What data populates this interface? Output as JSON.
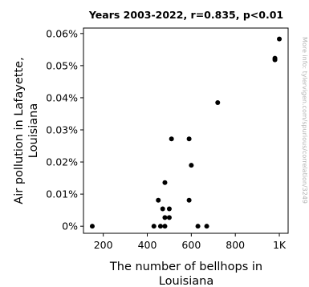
{
  "chart_data": {
    "type": "scatter",
    "title": "Years 2003-2022, r=0.835, p<0.01",
    "xlabel": [
      "The number of bellhops in",
      "Louisiana"
    ],
    "ylabel": [
      "Air pollution in Lafayette,",
      "Louisiana"
    ],
    "side_note": "More info: tylervigen.com/spurious/correlation/3249",
    "x_ticks": [
      {
        "value": 200,
        "label": "200"
      },
      {
        "value": 400,
        "label": "400"
      },
      {
        "value": 600,
        "label": "600"
      },
      {
        "value": 800,
        "label": "800"
      },
      {
        "value": 1000,
        "label": "1K"
      }
    ],
    "y_ticks": [
      {
        "value": 0.0,
        "label": "0%"
      },
      {
        "value": 0.01,
        "label": "0.01%"
      },
      {
        "value": 0.02,
        "label": "0.02%"
      },
      {
        "value": 0.03,
        "label": "0.03%"
      },
      {
        "value": 0.04,
        "label": "0.04%"
      },
      {
        "value": 0.05,
        "label": "0.05%"
      },
      {
        "value": 0.06,
        "label": "0.06%"
      }
    ],
    "xlim": [
      110,
      1040
    ],
    "ylim": [
      -0.0022,
      0.0617
    ],
    "grid": false,
    "point_color": "#000000",
    "points": [
      {
        "x": 150,
        "y": 0.0
      },
      {
        "x": 430,
        "y": 0.0
      },
      {
        "x": 460,
        "y": 0.0
      },
      {
        "x": 480,
        "y": 0.0
      },
      {
        "x": 630,
        "y": 0.0
      },
      {
        "x": 670,
        "y": 0.0
      },
      {
        "x": 480,
        "y": 0.0027
      },
      {
        "x": 500,
        "y": 0.0027
      },
      {
        "x": 470,
        "y": 0.0054
      },
      {
        "x": 500,
        "y": 0.0054
      },
      {
        "x": 450,
        "y": 0.0081
      },
      {
        "x": 590,
        "y": 0.0081
      },
      {
        "x": 480,
        "y": 0.0136
      },
      {
        "x": 600,
        "y": 0.019
      },
      {
        "x": 510,
        "y": 0.0272
      },
      {
        "x": 590,
        "y": 0.0272
      },
      {
        "x": 720,
        "y": 0.0385
      },
      {
        "x": 980,
        "y": 0.0518
      },
      {
        "x": 980,
        "y": 0.0523
      },
      {
        "x": 1000,
        "y": 0.0583
      }
    ]
  }
}
